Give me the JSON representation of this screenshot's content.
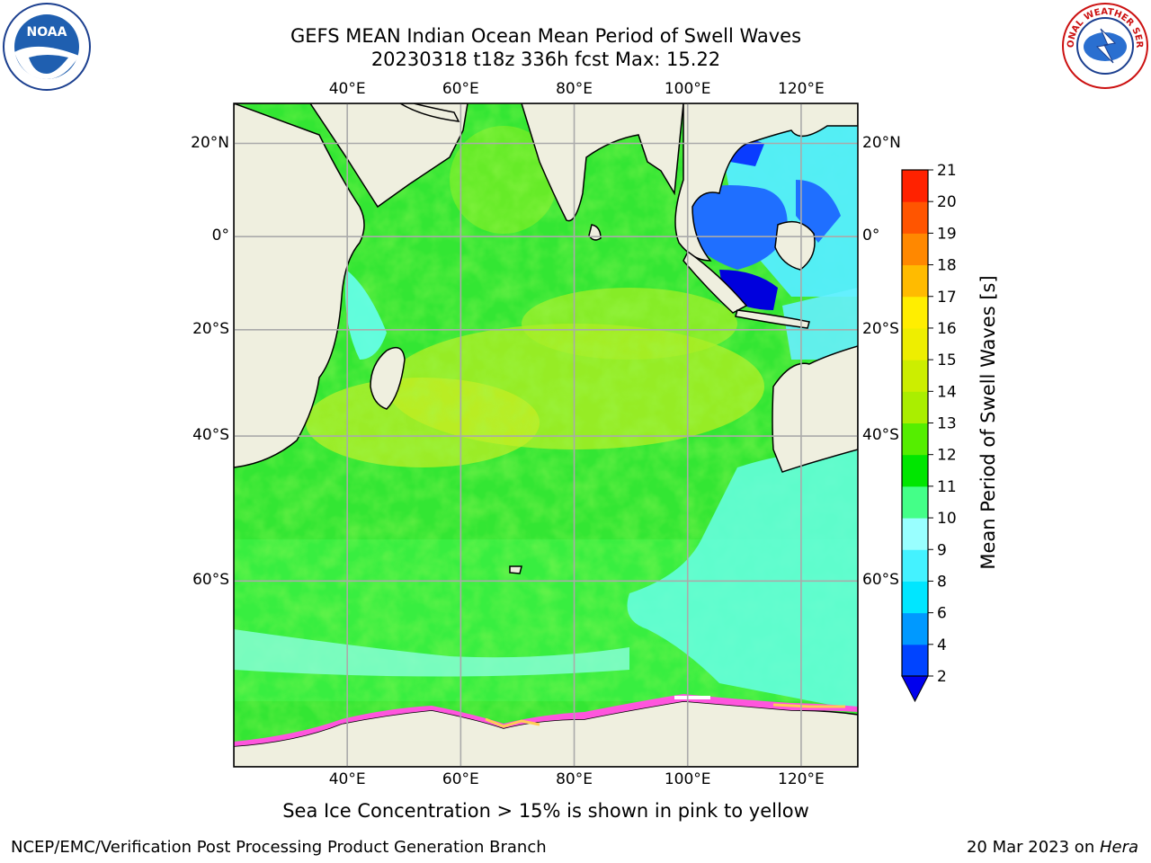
{
  "title": {
    "line1": "GEFS MEAN Indian Ocean Mean Period of Swell Waves",
    "line2": "20230318 t18z 336h fcst   Max: 15.22"
  },
  "map": {
    "lon_labels": [
      "40°E",
      "60°E",
      "80°E",
      "100°E",
      "120°E"
    ],
    "lon_values": [
      40,
      60,
      80,
      100,
      120
    ],
    "lat_labels_left": [
      "20°N",
      "0°",
      "20°S",
      "40°S",
      "60°S"
    ],
    "lat_labels_right": [
      "20°N",
      "0°",
      "20°S",
      "40°S",
      "60°S"
    ],
    "lon_range": [
      20,
      130
    ],
    "lat_range": [
      -75,
      28
    ]
  },
  "colorbar": {
    "label": "Mean Period of Swell Waves [s]",
    "ticks": [
      "2",
      "4",
      "6",
      "8",
      "9",
      "10",
      "11",
      "12",
      "13",
      "14",
      "15",
      "16",
      "17",
      "18",
      "19",
      "20",
      "21"
    ],
    "colors": [
      "#0044ff",
      "#0099ff",
      "#00e6ff",
      "#44f2ff",
      "#99ffff",
      "#44ff88",
      "#00e600",
      "#55ee00",
      "#aaee00",
      "#ccee00",
      "#eeee00",
      "#ffee00",
      "#ffbb00",
      "#ff8800",
      "#ff5500",
      "#ff2200",
      "#ff0000"
    ],
    "under_color": "#0000ee"
  },
  "footnote": "Sea Ice Concentration > 15% is shown in pink to yellow",
  "credit_left": "NCEP/EMC/Verification Post Processing Product Generation Branch",
  "credit_right_date": "20 Mar 2023 on ",
  "credit_right_host": "Hera",
  "logos": {
    "left": "NOAA",
    "right": "NATIONAL WEATHER SERVICE"
  }
}
